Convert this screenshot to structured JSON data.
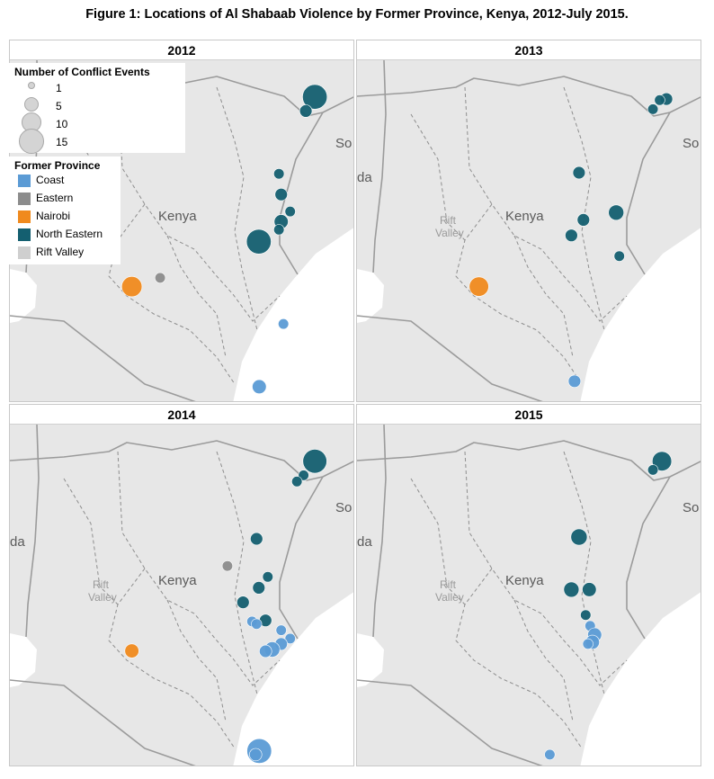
{
  "title": "Figure 1: Locations of Al Shabaab Violence by Former Province, Kenya, 2012-July 2015.",
  "labels": {
    "kenya": "Kenya",
    "somalia_partial": "So",
    "uganda_partial": "da",
    "rift": "Rift",
    "valley": "Valley"
  },
  "colors": {
    "Coast": "#5b9bd5",
    "Eastern": "#8c8c8c",
    "Nairobi": "#f08a1e",
    "North Eastern": "#145f70",
    "Rift Valley": "#cfcfcf",
    "land": "#e7e7e7",
    "sea": "#ffffff",
    "border": "#9b9b9b"
  },
  "legend": {
    "size_title": "Number of Conflict Events",
    "size_items": [
      {
        "label": "1",
        "value": 1
      },
      {
        "label": "5",
        "value": 5
      },
      {
        "label": "10",
        "value": 10
      },
      {
        "label": "15",
        "value": 15
      }
    ],
    "color_title": "Former Province",
    "color_items": [
      "Coast",
      "Eastern",
      "Nairobi",
      "North Eastern",
      "Rift Valley"
    ]
  },
  "chart_data": {
    "type": "map",
    "panels": [
      {
        "title": "2012",
        "show_rift_label": false,
        "points": [
          {
            "lon": 40.9,
            "lat": 3.94,
            "province": "North Eastern",
            "events": 15
          },
          {
            "lon": 40.7,
            "lat": 3.55,
            "province": "North Eastern",
            "events": 2
          },
          {
            "lon": 40.1,
            "lat": 1.82,
            "province": "North Eastern",
            "events": 1
          },
          {
            "lon": 40.15,
            "lat": 1.25,
            "province": "North Eastern",
            "events": 2
          },
          {
            "lon": 40.35,
            "lat": 0.78,
            "province": "North Eastern",
            "events": 1
          },
          {
            "lon": 40.15,
            "lat": 0.5,
            "province": "North Eastern",
            "events": 3
          },
          {
            "lon": 40.1,
            "lat": 0.28,
            "province": "North Eastern",
            "events": 1
          },
          {
            "lon": 39.65,
            "lat": -0.05,
            "province": "North Eastern",
            "events": 15
          },
          {
            "lon": 36.82,
            "lat": -1.29,
            "province": "Nairobi",
            "events": 9
          },
          {
            "lon": 37.45,
            "lat": -1.05,
            "province": "Eastern",
            "events": 1
          },
          {
            "lon": 40.2,
            "lat": -2.32,
            "province": "Coast",
            "events": 1
          },
          {
            "lon": 39.66,
            "lat": -4.05,
            "province": "Coast",
            "events": 3
          }
        ]
      },
      {
        "title": "2013",
        "show_rift_label": true,
        "points": [
          {
            "lon": 41.0,
            "lat": 3.88,
            "province": "North Eastern",
            "events": 2
          },
          {
            "lon": 40.85,
            "lat": 3.85,
            "province": "North Eastern",
            "events": 1
          },
          {
            "lon": 40.7,
            "lat": 3.6,
            "province": "North Eastern",
            "events": 1
          },
          {
            "lon": 39.05,
            "lat": 1.85,
            "province": "North Eastern",
            "events": 2
          },
          {
            "lon": 39.88,
            "lat": 0.75,
            "province": "North Eastern",
            "events": 4
          },
          {
            "lon": 39.15,
            "lat": 0.55,
            "province": "North Eastern",
            "events": 2
          },
          {
            "lon": 38.88,
            "lat": 0.12,
            "province": "North Eastern",
            "events": 2
          },
          {
            "lon": 39.95,
            "lat": -0.45,
            "province": "North Eastern",
            "events": 1
          },
          {
            "lon": 36.82,
            "lat": -1.29,
            "province": "Nairobi",
            "events": 8
          },
          {
            "lon": 38.95,
            "lat": -3.9,
            "province": "Coast",
            "events": 2
          }
        ]
      },
      {
        "title": "2014",
        "show_rift_label": true,
        "points": [
          {
            "lon": 40.9,
            "lat": 3.94,
            "province": "North Eastern",
            "events": 14
          },
          {
            "lon": 40.65,
            "lat": 3.55,
            "province": "North Eastern",
            "events": 1
          },
          {
            "lon": 40.5,
            "lat": 3.38,
            "province": "North Eastern",
            "events": 1
          },
          {
            "lon": 39.6,
            "lat": 1.8,
            "province": "North Eastern",
            "events": 2
          },
          {
            "lon": 39.85,
            "lat": 0.75,
            "province": "North Eastern",
            "events": 1
          },
          {
            "lon": 39.65,
            "lat": 0.45,
            "province": "North Eastern",
            "events": 2
          },
          {
            "lon": 39.3,
            "lat": 0.05,
            "province": "North Eastern",
            "events": 2
          },
          {
            "lon": 39.8,
            "lat": -0.45,
            "province": "North Eastern",
            "events": 2
          },
          {
            "lon": 38.95,
            "lat": 1.05,
            "province": "Eastern",
            "events": 1
          },
          {
            "lon": 36.82,
            "lat": -1.29,
            "province": "Nairobi",
            "events": 3
          },
          {
            "lon": 39.5,
            "lat": -0.48,
            "province": "Coast",
            "events": 1
          },
          {
            "lon": 40.15,
            "lat": -0.72,
            "province": "Coast",
            "events": 1
          },
          {
            "lon": 40.35,
            "lat": -0.95,
            "province": "Coast",
            "events": 1
          },
          {
            "lon": 40.15,
            "lat": -1.1,
            "province": "Coast",
            "events": 2
          },
          {
            "lon": 39.95,
            "lat": -1.25,
            "province": "Coast",
            "events": 4
          },
          {
            "lon": 39.8,
            "lat": -1.3,
            "province": "Coast",
            "events": 2
          },
          {
            "lon": 39.6,
            "lat": -0.55,
            "province": "Coast",
            "events": 1
          },
          {
            "lon": 39.66,
            "lat": -4.05,
            "province": "Coast",
            "events": 15
          },
          {
            "lon": 39.58,
            "lat": -4.15,
            "province": "Coast",
            "events": 2
          }
        ]
      },
      {
        "title": "2015",
        "show_rift_label": true,
        "points": [
          {
            "lon": 40.9,
            "lat": 3.94,
            "province": "North Eastern",
            "events": 8
          },
          {
            "lon": 40.7,
            "lat": 3.7,
            "province": "North Eastern",
            "events": 1
          },
          {
            "lon": 39.05,
            "lat": 1.85,
            "province": "North Eastern",
            "events": 5
          },
          {
            "lon": 38.88,
            "lat": 0.4,
            "province": "North Eastern",
            "events": 4
          },
          {
            "lon": 39.28,
            "lat": 0.4,
            "province": "North Eastern",
            "events": 3
          },
          {
            "lon": 39.2,
            "lat": -0.3,
            "province": "North Eastern",
            "events": 1
          },
          {
            "lon": 39.3,
            "lat": -0.6,
            "province": "Coast",
            "events": 1
          },
          {
            "lon": 39.4,
            "lat": -0.85,
            "province": "Coast",
            "events": 3
          },
          {
            "lon": 39.35,
            "lat": -1.05,
            "province": "Coast",
            "events": 3
          },
          {
            "lon": 39.25,
            "lat": -1.1,
            "province": "Coast",
            "events": 1
          },
          {
            "lon": 38.4,
            "lat": -4.15,
            "province": "Coast",
            "events": 1
          }
        ]
      }
    ]
  }
}
